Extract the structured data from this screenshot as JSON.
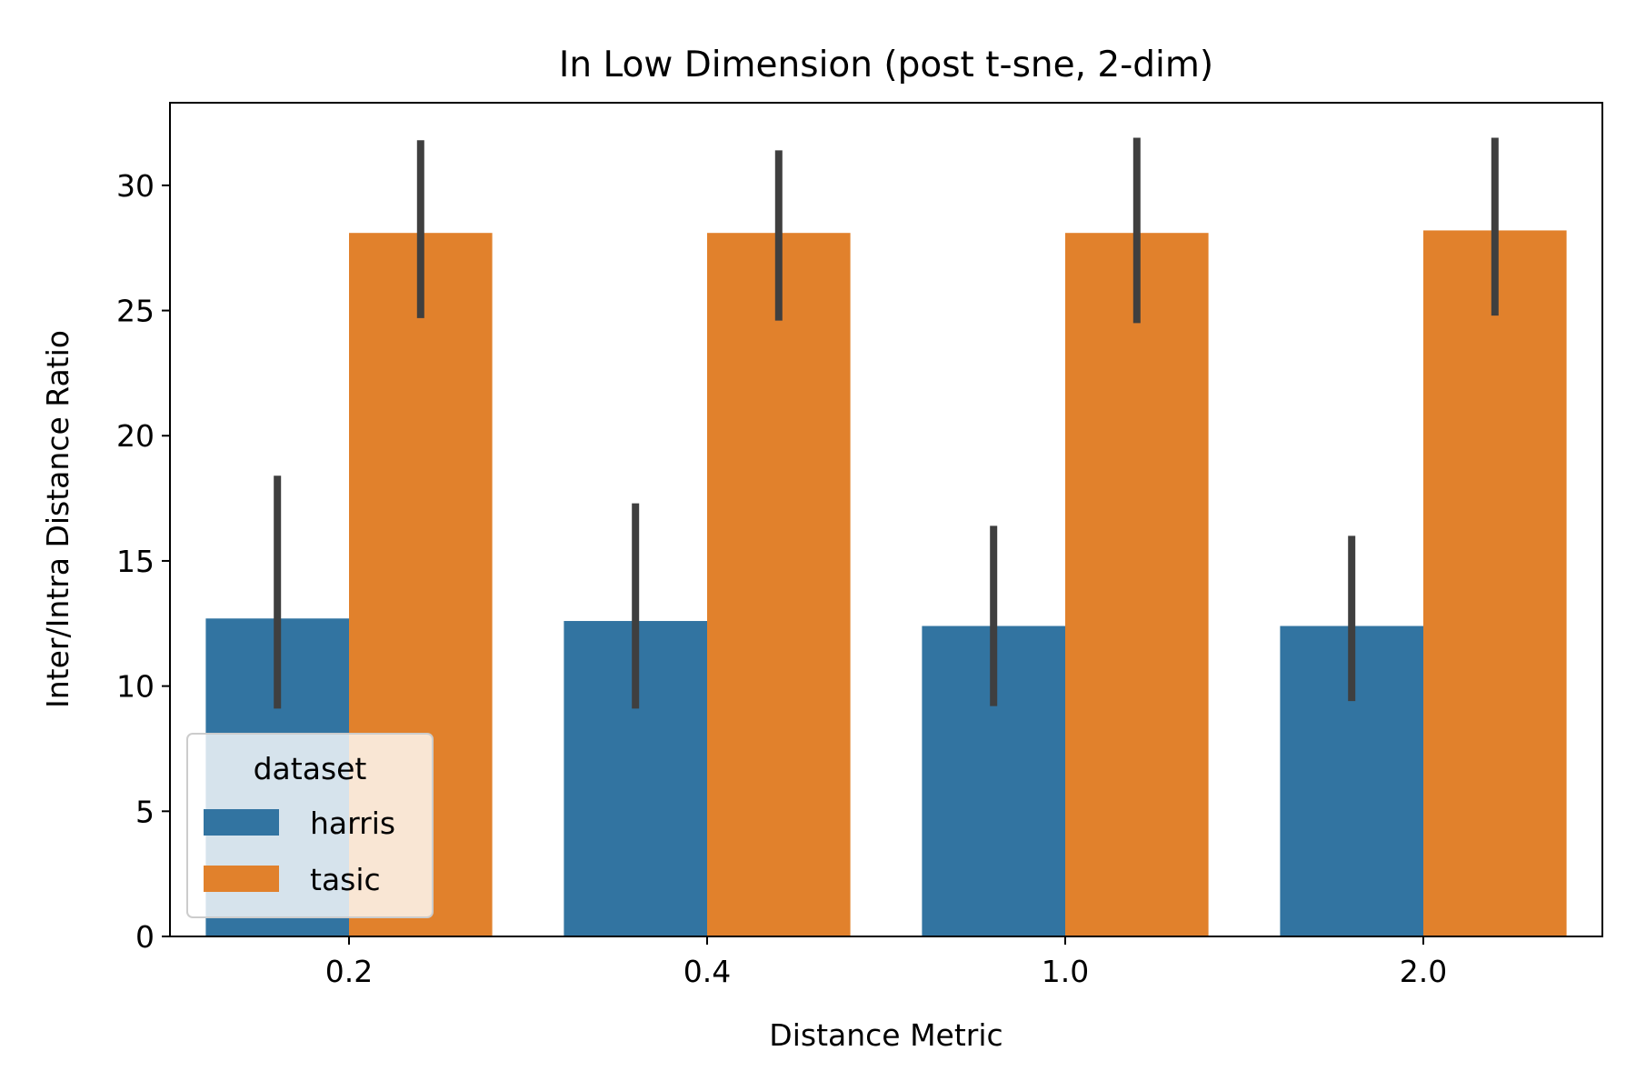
{
  "chart_data": {
    "type": "bar",
    "title": "In Low Dimension (post t-sne, 2-dim)",
    "xlabel": "Distance Metric",
    "ylabel": "Inter/Intra Distance Ratio",
    "categories": [
      "0.2",
      "0.4",
      "1.0",
      "2.0"
    ],
    "ylim": [
      0,
      33.3
    ],
    "yticks": [
      0,
      5,
      10,
      15,
      20,
      25,
      30
    ],
    "grid": false,
    "legend": {
      "title": "dataset",
      "placement": "lower-left"
    },
    "series": [
      {
        "name": "harris",
        "color": "#3274a1",
        "values": [
          12.7,
          12.6,
          12.4,
          12.4
        ],
        "error_low": [
          9.1,
          9.1,
          9.2,
          9.4
        ],
        "error_high": [
          18.4,
          17.3,
          16.4,
          16.0
        ]
      },
      {
        "name": "tasic",
        "color": "#e1812c",
        "values": [
          28.1,
          28.1,
          28.1,
          28.2
        ],
        "error_low": [
          24.7,
          24.6,
          24.5,
          24.8
        ],
        "error_high": [
          31.8,
          31.4,
          31.9,
          31.9
        ]
      }
    ],
    "error_bar_color": "#3f3f3f"
  }
}
